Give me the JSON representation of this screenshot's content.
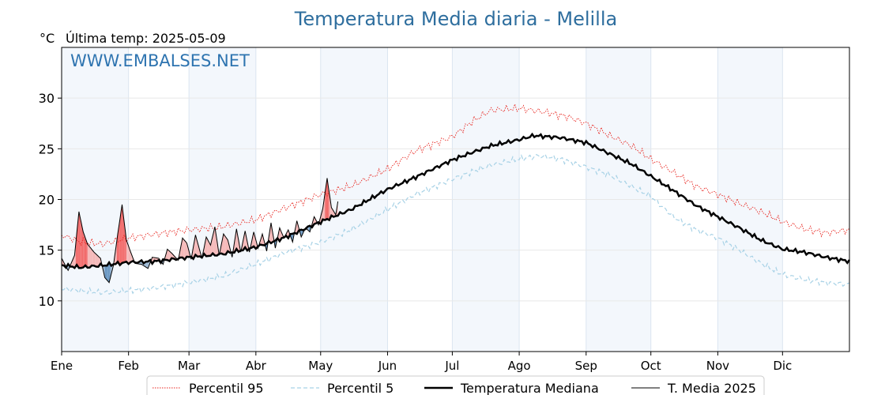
{
  "chart_data": {
    "type": "line",
    "title": "Temperatura Media diaria - Melilla",
    "unit_label": "°C",
    "subtitle": "Última temp: 2025-05-09",
    "watermark": "WWW.EMBALSES.NET",
    "ylim": [
      5,
      35
    ],
    "yticks": [
      10,
      15,
      20,
      25,
      30
    ],
    "months": [
      "Ene",
      "Feb",
      "Mar",
      "Abr",
      "May",
      "Jun",
      "Jul",
      "Ago",
      "Sep",
      "Oct",
      "Nov",
      "Dic"
    ],
    "month_start_days": [
      1,
      32,
      60,
      91,
      121,
      152,
      182,
      213,
      244,
      274,
      305,
      335
    ],
    "grid": true,
    "legend_position": "bottom",
    "series": [
      {
        "name": "Percentil 95",
        "color": "#e8251f",
        "style": "dotted",
        "points": [
          [
            1,
            16.5
          ],
          [
            10,
            15.8
          ],
          [
            20,
            15.6
          ],
          [
            32,
            16.2
          ],
          [
            45,
            16.6
          ],
          [
            60,
            17
          ],
          [
            75,
            17.3
          ],
          [
            91,
            18
          ],
          [
            105,
            19.2
          ],
          [
            121,
            20.5
          ],
          [
            135,
            21.3
          ],
          [
            152,
            23
          ],
          [
            165,
            24.8
          ],
          [
            182,
            26.2
          ],
          [
            192,
            27.8
          ],
          [
            200,
            28.8
          ],
          [
            213,
            29
          ],
          [
            225,
            28.6
          ],
          [
            235,
            28.2
          ],
          [
            244,
            27.5
          ],
          [
            255,
            26.3
          ],
          [
            265,
            25.3
          ],
          [
            274,
            24
          ],
          [
            285,
            22.6
          ],
          [
            295,
            21.3
          ],
          [
            305,
            20.5
          ],
          [
            315,
            19.6
          ],
          [
            325,
            18.8
          ],
          [
            335,
            17.8
          ],
          [
            345,
            17.1
          ],
          [
            355,
            16.7
          ],
          [
            366,
            17
          ]
        ]
      },
      {
        "name": "Percentil 5",
        "color": "#a8d2e6",
        "style": "dashed",
        "points": [
          [
            1,
            11.2
          ],
          [
            10,
            11
          ],
          [
            20,
            10.8
          ],
          [
            32,
            11
          ],
          [
            45,
            11.3
          ],
          [
            60,
            11.8
          ],
          [
            75,
            12.4
          ],
          [
            91,
            13.6
          ],
          [
            105,
            14.8
          ],
          [
            121,
            15.8
          ],
          [
            135,
            17
          ],
          [
            152,
            19
          ],
          [
            165,
            20.5
          ],
          [
            182,
            22
          ],
          [
            192,
            22.8
          ],
          [
            200,
            23.4
          ],
          [
            213,
            24
          ],
          [
            222,
            24.3
          ],
          [
            232,
            24
          ],
          [
            244,
            23.2
          ],
          [
            255,
            22.4
          ],
          [
            265,
            21.3
          ],
          [
            274,
            20.3
          ],
          [
            285,
            18.2
          ],
          [
            295,
            17
          ],
          [
            305,
            16.2
          ],
          [
            315,
            15
          ],
          [
            325,
            13.7
          ],
          [
            335,
            12.6
          ],
          [
            345,
            12.1
          ],
          [
            355,
            11.8
          ],
          [
            366,
            11.6
          ]
        ]
      },
      {
        "name": "Temperatura Mediana",
        "color": "#000000",
        "style": "solid-thick",
        "points": [
          [
            1,
            13.5
          ],
          [
            10,
            13.3
          ],
          [
            20,
            13.5
          ],
          [
            32,
            13.8
          ],
          [
            45,
            13.9
          ],
          [
            60,
            14.3
          ],
          [
            75,
            14.6
          ],
          [
            91,
            15.3
          ],
          [
            105,
            16.3
          ],
          [
            121,
            17.8
          ],
          [
            135,
            19
          ],
          [
            152,
            21
          ],
          [
            165,
            22.2
          ],
          [
            182,
            23.9
          ],
          [
            192,
            24.7
          ],
          [
            200,
            25.3
          ],
          [
            213,
            25.9
          ],
          [
            220,
            26.3
          ],
          [
            232,
            26.1
          ],
          [
            244,
            25.6
          ],
          [
            255,
            24.5
          ],
          [
            265,
            23.5
          ],
          [
            274,
            22.3
          ],
          [
            285,
            20.8
          ],
          [
            295,
            19.4
          ],
          [
            305,
            18.3
          ],
          [
            315,
            17.2
          ],
          [
            325,
            16
          ],
          [
            335,
            15.1
          ],
          [
            345,
            14.8
          ],
          [
            355,
            14.3
          ],
          [
            366,
            13.9
          ]
        ]
      },
      {
        "name": "T. Media 2025",
        "color": "#000000",
        "style": "solid-thin",
        "points": [
          [
            1,
            14.2
          ],
          [
            4,
            13
          ],
          [
            7,
            14.5
          ],
          [
            9,
            18.8
          ],
          [
            11,
            16.8
          ],
          [
            13,
            15.6
          ],
          [
            16,
            14.8
          ],
          [
            19,
            14.2
          ],
          [
            21,
            12.3
          ],
          [
            23,
            11.8
          ],
          [
            25,
            13.5
          ],
          [
            27,
            16.6
          ],
          [
            29,
            19.5
          ],
          [
            31,
            16
          ],
          [
            33,
            14.8
          ],
          [
            35,
            13.7
          ],
          [
            38,
            13.6
          ],
          [
            41,
            13.2
          ],
          [
            43,
            14.3
          ],
          [
            46,
            14.2
          ],
          [
            48,
            13.6
          ],
          [
            50,
            15.1
          ],
          [
            52,
            14.7
          ],
          [
            55,
            14
          ],
          [
            57,
            16.2
          ],
          [
            59,
            15.7
          ],
          [
            61,
            14.1
          ],
          [
            63,
            16.5
          ],
          [
            66,
            14.2
          ],
          [
            68,
            16.3
          ],
          [
            70,
            15.5
          ],
          [
            72,
            17.3
          ],
          [
            74,
            14.5
          ],
          [
            76,
            16.6
          ],
          [
            78,
            16
          ],
          [
            80,
            14.3
          ],
          [
            82,
            17.1
          ],
          [
            84,
            14.8
          ],
          [
            86,
            16.9
          ],
          [
            88,
            14.8
          ],
          [
            90,
            16.8
          ],
          [
            92,
            15.2
          ],
          [
            94,
            16.6
          ],
          [
            96,
            14.9
          ],
          [
            98,
            17.7
          ],
          [
            100,
            15.2
          ],
          [
            102,
            17.2
          ],
          [
            104,
            16.2
          ],
          [
            106,
            17
          ],
          [
            108,
            15.8
          ],
          [
            110,
            17.9
          ],
          [
            112,
            16.3
          ],
          [
            114,
            17.2
          ],
          [
            116,
            16.8
          ],
          [
            118,
            18.3
          ],
          [
            120,
            17.5
          ],
          [
            122,
            19.1
          ],
          [
            124,
            22.1
          ],
          [
            126,
            19.2
          ],
          [
            128,
            18.5
          ],
          [
            129,
            19.8
          ]
        ]
      }
    ]
  }
}
